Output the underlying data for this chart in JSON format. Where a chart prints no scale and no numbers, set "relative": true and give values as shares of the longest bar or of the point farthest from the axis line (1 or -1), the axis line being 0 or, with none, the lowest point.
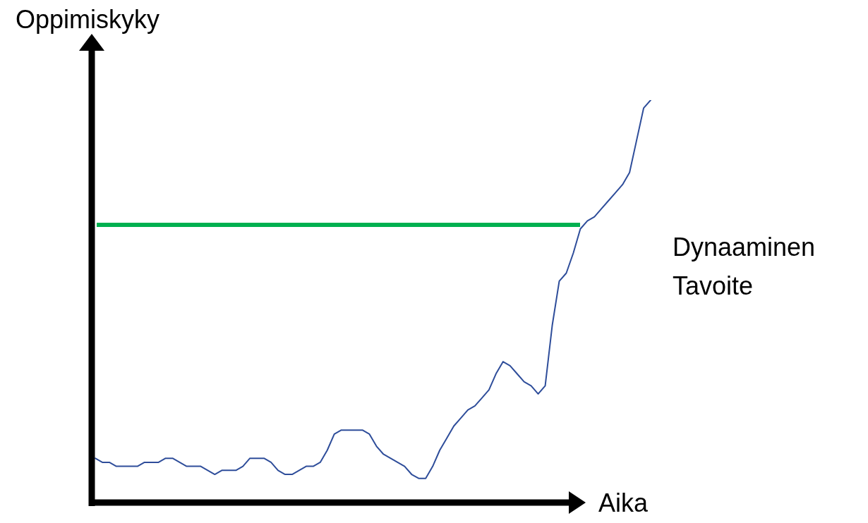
{
  "chart_data": {
    "type": "line",
    "relative": true,
    "xlabel": "Aika",
    "ylabel": "Oppimiskyky",
    "marker": "none",
    "line_style": "solid",
    "categories": [
      null,
      null,
      null,
      null,
      null,
      null,
      null,
      null,
      null,
      null,
      null,
      null,
      null,
      null,
      null,
      null,
      null,
      null,
      null,
      null,
      null,
      null,
      null,
      null,
      null,
      null,
      null,
      null,
      null,
      null,
      null,
      null,
      null,
      null,
      null,
      null,
      null,
      null,
      null,
      null,
      null,
      null,
      null,
      null,
      null,
      null,
      null,
      null,
      null,
      null,
      null,
      null,
      null,
      null,
      null,
      null,
      null,
      null,
      null,
      null,
      null,
      null,
      null,
      null,
      null,
      null,
      null,
      null,
      null,
      null,
      null,
      null,
      null,
      null,
      null,
      null,
      null,
      null,
      null,
      null
    ],
    "series": [
      {
        "color": "#2e4d9a",
        "values": [
          0.11,
          0.1,
          0.1,
          0.09,
          0.09,
          0.09,
          0.09,
          0.1,
          0.1,
          0.1,
          0.11,
          0.11,
          0.1,
          0.09,
          0.09,
          0.09,
          0.08,
          0.07,
          0.08,
          0.08,
          0.08,
          0.09,
          0.11,
          0.11,
          0.11,
          0.1,
          0.08,
          0.07,
          0.07,
          0.08,
          0.09,
          0.09,
          0.1,
          0.13,
          0.17,
          0.18,
          0.18,
          0.18,
          0.18,
          0.17,
          0.14,
          0.12,
          0.11,
          0.1,
          0.09,
          0.07,
          0.06,
          0.06,
          0.09,
          0.13,
          0.16,
          0.19,
          0.21,
          0.23,
          0.24,
          0.26,
          0.28,
          0.32,
          0.35,
          0.34,
          0.32,
          0.3,
          0.29,
          0.27,
          0.29,
          0.44,
          0.55,
          0.57,
          0.62,
          0.68,
          0.7,
          0.71,
          0.73,
          0.75,
          0.77,
          0.79,
          0.82,
          0.9,
          0.98,
          1
        ]
      }
    ],
    "ref_lines": [
      {
        "axis": "y",
        "value": 0.69,
        "color": "#00b050",
        "line_style": "solid"
      }
    ],
    "annotations": [
      "Dynaaminen Tavoite"
    ]
  }
}
